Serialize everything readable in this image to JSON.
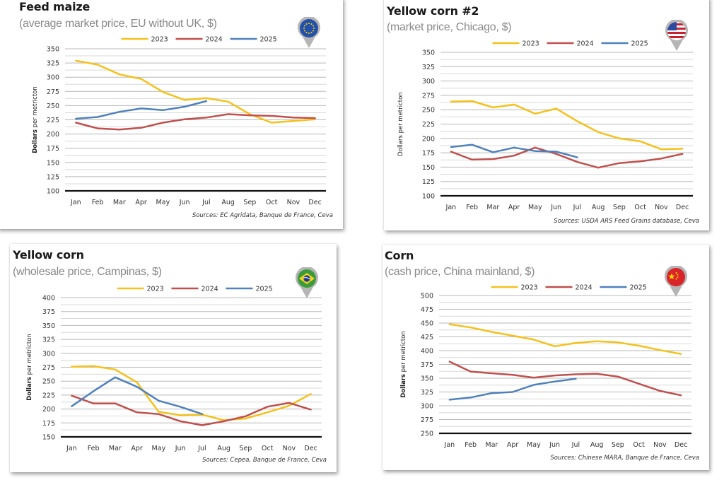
{
  "colors": {
    "2023": "#F5C11B",
    "2024": "#C0504D",
    "2025": "#4F81BD",
    "grid": "#b8b8b8",
    "axis": "#111111"
  },
  "chart_data": [
    {
      "id": "feed-maize",
      "type": "line",
      "title": "Feed maize",
      "subtitle": "(average market price, EU without UK, $)",
      "flag": "eu-flag",
      "ylabel_bold": "Dollars",
      "ylabel_rest": " per metricton",
      "ylim": [
        100,
        350
      ],
      "yticks": [
        100,
        125,
        150,
        175,
        200,
        225,
        250,
        275,
        300,
        325,
        350
      ],
      "categories": [
        "Jan",
        "Feb",
        "Mar",
        "Apr",
        "May",
        "Jun",
        "Jul",
        "Aug",
        "Sep",
        "Oct",
        "Nov",
        "Dec"
      ],
      "legend": [
        "2023",
        "2024",
        "2025"
      ],
      "legend_position": "top-center",
      "grid": true,
      "series": [
        {
          "name": "2023",
          "values": [
            329,
            322,
            305,
            297,
            274,
            260,
            263,
            257,
            235,
            220,
            223,
            226
          ]
        },
        {
          "name": "2024",
          "values": [
            220,
            210,
            208,
            211,
            220,
            226,
            229,
            235,
            233,
            232,
            229,
            228
          ]
        },
        {
          "name": "2025",
          "values": [
            227,
            230,
            239,
            245,
            242,
            248,
            258
          ]
        }
      ],
      "source": "Sources: EC Agridata, Banque de France, Ceva"
    },
    {
      "id": "yellow-corn-2",
      "type": "line",
      "title": "Yellow corn #2",
      "subtitle": "(market price, Chicago, $)",
      "flag": "us-flag",
      "ylabel_bold": "",
      "ylabel_rest": "Dollars per metricton",
      "ylim": [
        100,
        350
      ],
      "yticks": [
        100,
        125,
        150,
        175,
        200,
        225,
        250,
        275,
        300,
        325,
        350
      ],
      "categories": [
        "Jan",
        "Feb",
        "Mar",
        "Apr",
        "May",
        "Jun",
        "Jul",
        "Aug",
        "Sep",
        "Oct",
        "Nov",
        "Dec"
      ],
      "legend": [
        "2023",
        "2024",
        "2025"
      ],
      "legend_position": "top-center",
      "grid": true,
      "series": [
        {
          "name": "2023",
          "values": [
            264,
            265,
            254,
            259,
            243,
            252,
            230,
            211,
            200,
            195,
            181,
            182
          ]
        },
        {
          "name": "2024",
          "values": [
            177,
            163,
            164,
            170,
            184,
            173,
            159,
            149,
            157,
            160,
            165,
            173
          ]
        },
        {
          "name": "2025",
          "values": [
            185,
            189,
            176,
            184,
            178,
            177,
            167
          ]
        }
      ],
      "source": "Sources: USDA ARS Feed Grains database, Ceva"
    },
    {
      "id": "yellow-corn-brazil",
      "type": "line",
      "title": "Yellow corn",
      "subtitle": "(wholesale price, Campinas, $)",
      "flag": "brazil-flag",
      "ylabel_bold": "Dollars",
      "ylabel_rest": " per metricton",
      "ylim": [
        150,
        400
      ],
      "yticks": [
        150,
        175,
        200,
        225,
        250,
        275,
        300,
        325,
        350,
        375,
        400
      ],
      "categories": [
        "Jan",
        "Feb",
        "Mar",
        "Apr",
        "May",
        "Jun",
        "Jul",
        "Aug",
        "Sep",
        "Oct",
        "Nov",
        "Dec"
      ],
      "legend": [
        "2023",
        "2024",
        "2025"
      ],
      "legend_position": "top-center",
      "grid": true,
      "series": [
        {
          "name": "2023",
          "values": [
            276,
            277,
            271,
            248,
            195,
            189,
            190,
            180,
            183,
            194,
            206,
            227
          ]
        },
        {
          "name": "2024",
          "values": [
            224,
            210,
            210,
            194,
            191,
            178,
            171,
            178,
            187,
            204,
            211,
            199
          ]
        },
        {
          "name": "2025",
          "values": [
            205,
            232,
            257,
            240,
            215,
            204,
            191
          ]
        }
      ],
      "source": "Sources: Cepea, Banque de France, Ceva"
    },
    {
      "id": "corn-china",
      "type": "line",
      "title": "Corn",
      "subtitle": "(cash price, China mainland, $)",
      "flag": "china-flag",
      "ylabel_bold": "Dollars",
      "ylabel_rest": " per metricton",
      "ylim": [
        250,
        500
      ],
      "yticks": [
        250,
        275,
        300,
        325,
        350,
        375,
        400,
        425,
        450,
        475,
        500
      ],
      "categories": [
        "Jan",
        "Feb",
        "Mar",
        "Apr",
        "May",
        "Jun",
        "Jul",
        "Aug",
        "Sep",
        "Oct",
        "Nov",
        "Dec"
      ],
      "legend": [
        "2023",
        "2024",
        "2025"
      ],
      "legend_position": "top-center",
      "grid": true,
      "series": [
        {
          "name": "2023",
          "values": [
            448,
            442,
            434,
            427,
            420,
            408,
            414,
            417,
            415,
            409,
            401,
            394
          ]
        },
        {
          "name": "2024",
          "values": [
            380,
            362,
            359,
            356,
            351,
            355,
            357,
            358,
            353,
            340,
            327,
            319
          ]
        },
        {
          "name": "2025",
          "values": [
            311,
            315,
            323,
            325,
            338,
            344,
            349
          ]
        }
      ],
      "source": "Sources: Chinese MARA, Banque de France, Ceva"
    }
  ]
}
